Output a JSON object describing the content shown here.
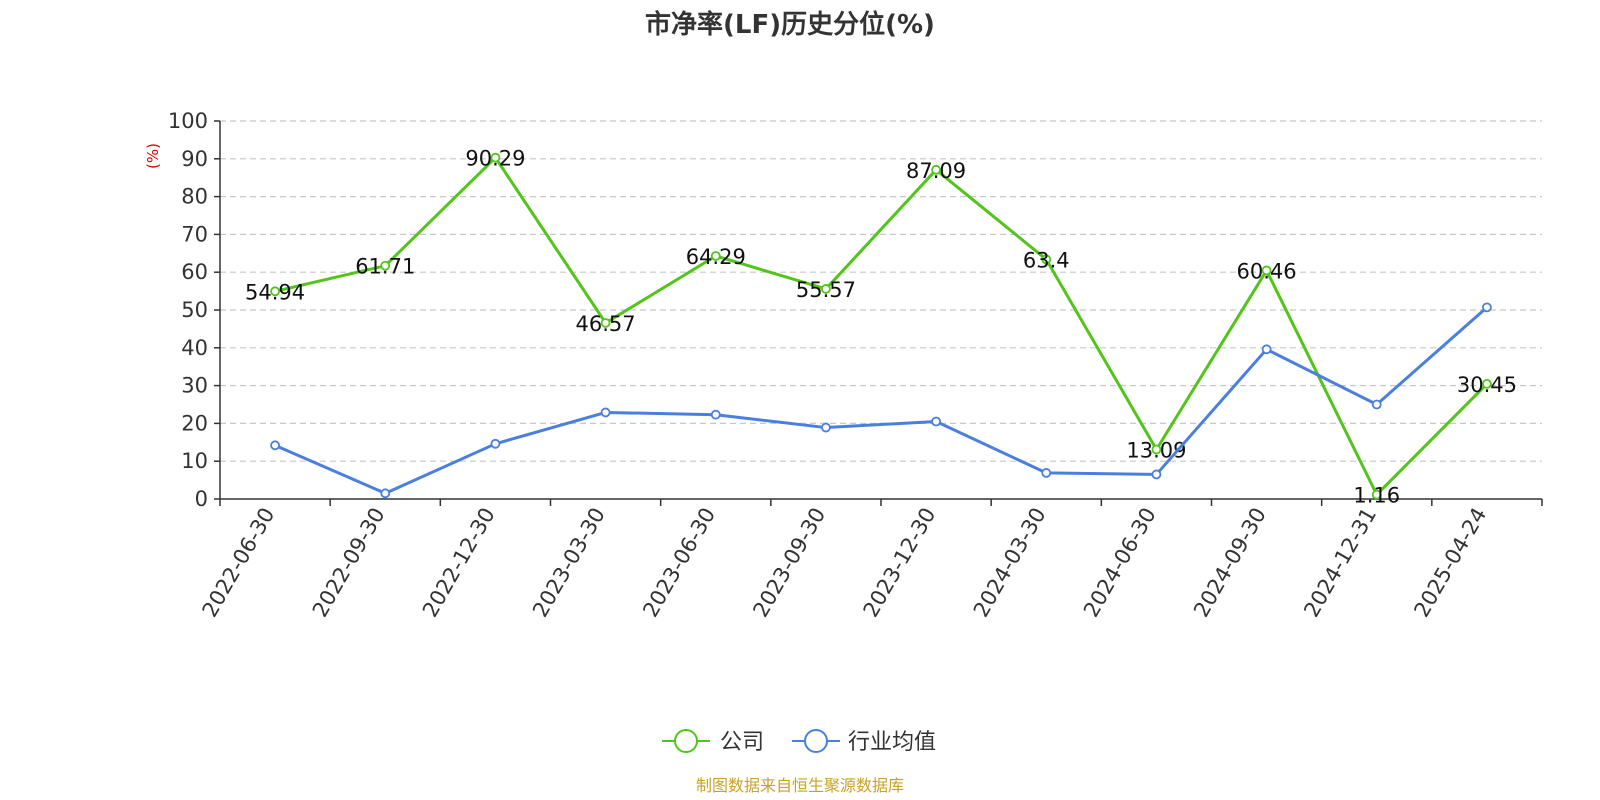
{
  "chart_data": {
    "type": "line",
    "title": "市净率(LF)历史分位(%)",
    "ylabel": "(%)",
    "ylim": [
      0,
      100
    ],
    "yticks": [
      "0",
      "10",
      "20",
      "30",
      "40",
      "50",
      "60",
      "70",
      "80",
      "90",
      "100"
    ],
    "grid": true,
    "legend_position": "bottom",
    "x": [
      "2022-06-30",
      "2022-09-30",
      "2022-12-30",
      "2023-03-30",
      "2023-06-30",
      "2023-09-30",
      "2023-12-30",
      "2024-03-30",
      "2024-06-30",
      "2024-09-30",
      "2024-12-31",
      "2025-04-24"
    ],
    "series": [
      {
        "name": "公司",
        "color": "#52c41a",
        "values": [
          54.94,
          61.71,
          90.29,
          46.57,
          64.29,
          55.57,
          87.09,
          63.4,
          13.09,
          60.46,
          1.16,
          30.45
        ],
        "labels": [
          "54.94",
          "61.71",
          "90.29",
          "46.57",
          "64.29",
          "55.57",
          "87.09",
          "63.4",
          "13.09",
          "60.46",
          "1.16",
          "30.45"
        ]
      },
      {
        "name": "行业均值",
        "color": "#4a7fdd",
        "values": [
          14.2,
          1.5,
          14.6,
          22.9,
          22.3,
          18.9,
          20.5,
          6.9,
          6.5,
          39.6,
          25.0,
          50.7
        ]
      }
    ]
  },
  "source_note": "制图数据来自恒生聚源数据库"
}
